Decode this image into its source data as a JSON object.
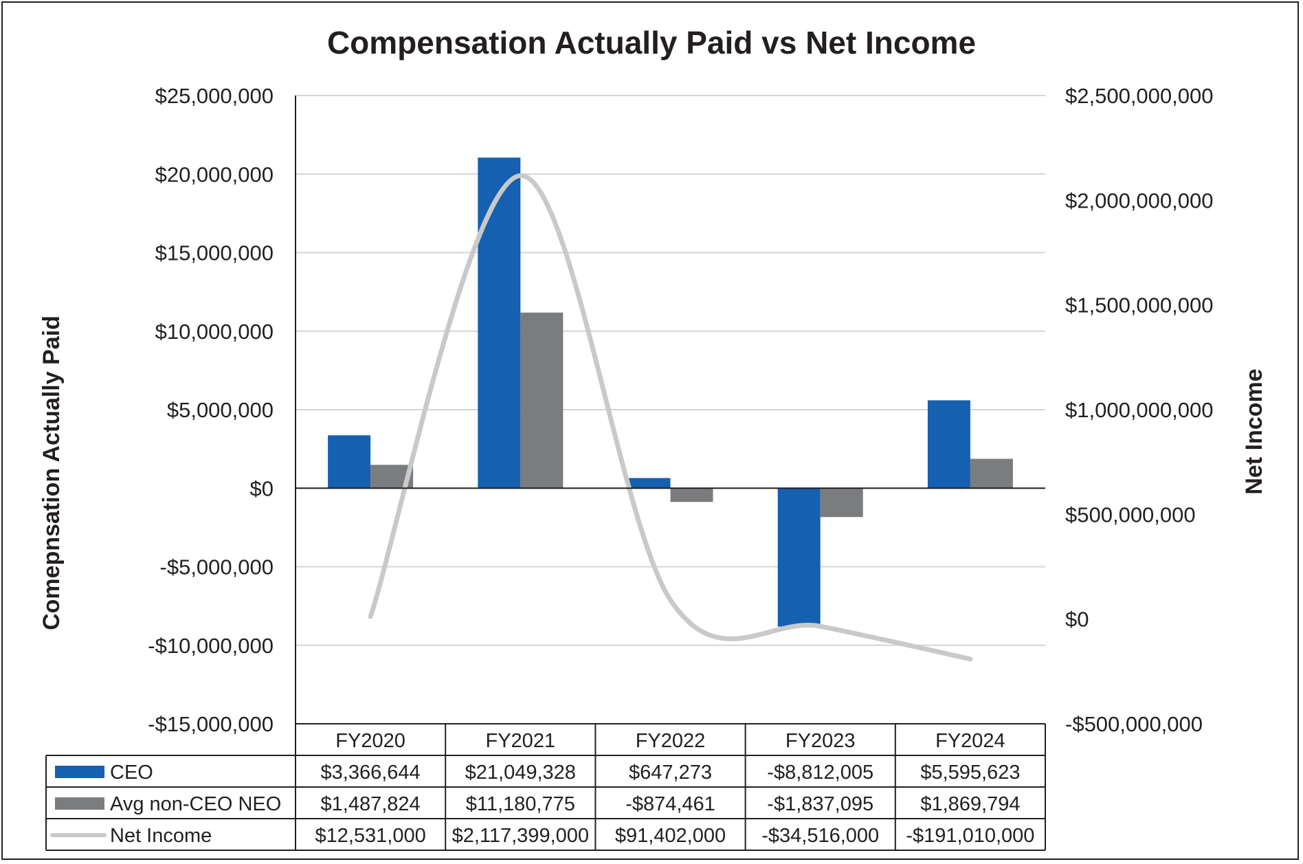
{
  "chart_data": {
    "type": "bar",
    "title": "Compensation Actually Paid vs Net Income",
    "ylabel": "Comepnsation Actually Paid",
    "y2label": "Net Income",
    "categories": [
      "FY2020",
      "FY2021",
      "FY2022",
      "FY2023",
      "FY2024"
    ],
    "ylim": [
      -15000000,
      25000000
    ],
    "y2lim": [
      -500000000,
      2500000000
    ],
    "yticks": [
      25000000,
      20000000,
      15000000,
      10000000,
      5000000,
      0,
      -5000000,
      -10000000,
      -15000000
    ],
    "ytick_labels": [
      "$25,000,000",
      "$20,000,000",
      "$15,000,000",
      "$10,000,000",
      "$5,000,000",
      "$0",
      "-$5,000,000",
      "-$10,000,000",
      "-$15,000,000"
    ],
    "y2ticks": [
      2500000000,
      2000000000,
      1500000000,
      1000000000,
      500000000,
      0,
      -500000000
    ],
    "y2tick_labels": [
      "$2,500,000,000",
      "$2,000,000,000",
      "$1,500,000,000",
      "$1,000,000,000",
      "$500,000,000",
      "$0",
      "-$500,000,000"
    ],
    "grid": true,
    "series": [
      {
        "name": "CEO",
        "type": "bar",
        "axis": "left",
        "color": "#1560b0",
        "values": [
          3366644,
          21049328,
          647273,
          -8812005,
          5595623
        ],
        "labels": [
          "$3,366,644",
          "$21,049,328",
          "$647,273",
          "-$8,812,005",
          "$5,595,623"
        ]
      },
      {
        "name": "Avg non-CEO NEO",
        "type": "bar",
        "axis": "left",
        "color": "#7b7c7e",
        "values": [
          1487824,
          11180775,
          -874461,
          -1837095,
          1869794
        ],
        "labels": [
          "$1,487,824",
          "$11,180,775",
          "-$874,461",
          "-$1,837,095",
          "$1,869,794"
        ]
      },
      {
        "name": "Net Income",
        "type": "line",
        "axis": "right",
        "color": "#c8c9cb",
        "values": [
          12531000,
          2117399000,
          91402000,
          -34516000,
          -191010000
        ],
        "labels": [
          "$12,531,000",
          "$2,117,399,000",
          "$91,402,000",
          "-$34,516,000",
          "-$191,010,000"
        ]
      }
    ]
  }
}
